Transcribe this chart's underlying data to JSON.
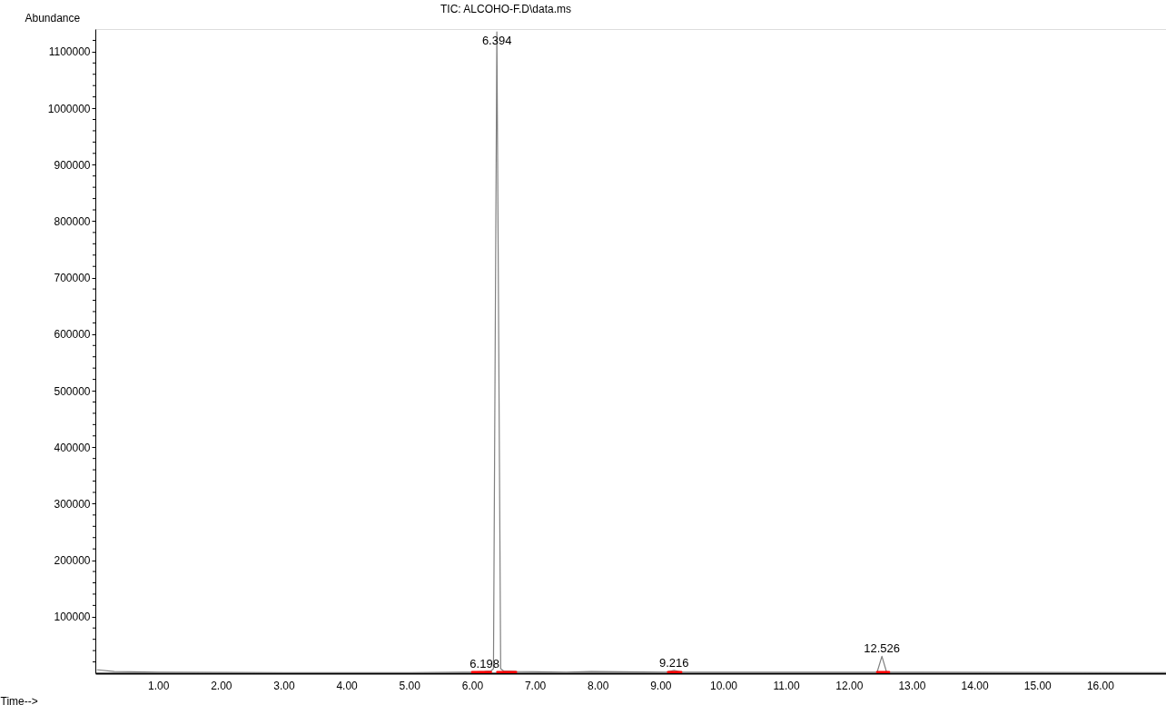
{
  "chart_data": {
    "type": "line",
    "title": "TIC: ALCOHO-F.D\\data.ms",
    "xlabel": "Time-->",
    "ylabel": "Abundance",
    "xlim": [
      0,
      17.05
    ],
    "ylim": [
      0,
      1140000
    ],
    "xticks": [
      {
        "value": 1,
        "label": "1.00"
      },
      {
        "value": 2,
        "label": "2.00"
      },
      {
        "value": 3,
        "label": "3.00"
      },
      {
        "value": 4,
        "label": "4.00"
      },
      {
        "value": 5,
        "label": "5.00"
      },
      {
        "value": 6,
        "label": "6.00"
      },
      {
        "value": 7,
        "label": "7.00"
      },
      {
        "value": 8,
        "label": "8.00"
      },
      {
        "value": 9,
        "label": "9.00"
      },
      {
        "value": 10,
        "label": "10.00"
      },
      {
        "value": 11,
        "label": "11.00"
      },
      {
        "value": 12,
        "label": "12.00"
      },
      {
        "value": 13,
        "label": "13.00"
      },
      {
        "value": 14,
        "label": "14.00"
      },
      {
        "value": 15,
        "label": "15.00"
      },
      {
        "value": 16,
        "label": "16.00"
      }
    ],
    "yticks": [
      {
        "value": 20000,
        "label": null
      },
      {
        "value": 40000,
        "label": null
      },
      {
        "value": 60000,
        "label": null
      },
      {
        "value": 80000,
        "label": null
      },
      100000,
      {
        "value": 120000,
        "label": null
      },
      {
        "value": 140000,
        "label": null
      },
      {
        "value": 160000,
        "label": null
      },
      {
        "value": 180000,
        "label": null
      },
      200000,
      {
        "value": 220000,
        "label": null
      },
      {
        "value": 240000,
        "label": null
      },
      {
        "value": 260000,
        "label": null
      },
      {
        "value": 280000,
        "label": null
      },
      300000,
      {
        "value": 320000,
        "label": null
      },
      {
        "value": 340000,
        "label": null
      },
      {
        "value": 360000,
        "label": null
      },
      {
        "value": 380000,
        "label": null
      },
      400000,
      {
        "value": 420000,
        "label": null
      },
      {
        "value": 440000,
        "label": null
      },
      {
        "value": 460000,
        "label": null
      },
      {
        "value": 480000,
        "label": null
      },
      500000,
      {
        "value": 520000,
        "label": null
      },
      {
        "value": 540000,
        "label": null
      },
      {
        "value": 560000,
        "label": null
      },
      {
        "value": 580000,
        "label": null
      },
      600000,
      {
        "value": 620000,
        "label": null
      },
      {
        "value": 640000,
        "label": null
      },
      {
        "value": 660000,
        "label": null
      },
      {
        "value": 680000,
        "label": null
      },
      700000,
      {
        "value": 720000,
        "label": null
      },
      {
        "value": 740000,
        "label": null
      },
      {
        "value": 760000,
        "label": null
      },
      {
        "value": 780000,
        "label": null
      },
      800000,
      {
        "value": 820000,
        "label": null
      },
      {
        "value": 840000,
        "label": null
      },
      {
        "value": 860000,
        "label": null
      },
      {
        "value": 880000,
        "label": null
      },
      900000,
      {
        "value": 920000,
        "label": null
      },
      {
        "value": 940000,
        "label": null
      },
      {
        "value": 960000,
        "label": null
      },
      {
        "value": 980000,
        "label": null
      },
      1000000,
      {
        "value": 1020000,
        "label": null
      },
      {
        "value": 1040000,
        "label": null
      },
      {
        "value": 1060000,
        "label": null
      },
      {
        "value": 1080000,
        "label": null
      },
      1100000,
      {
        "value": 1120000,
        "label": null
      }
    ],
    "grid": false,
    "legend": false,
    "marker": "none",
    "line_style": "solid",
    "series": [
      {
        "color": "#808080",
        "x": [
          0.03,
          0.3,
          1,
          3,
          5,
          6.0,
          6.198,
          6.3,
          6.34,
          6.394,
          6.455,
          6.5,
          6.7,
          7.5,
          7.9,
          9.1,
          9.216,
          9.33,
          12.45,
          12.526,
          12.6,
          17.05
        ],
        "values": [
          6000,
          3000,
          2000,
          1000,
          1000,
          2000,
          3000,
          4000,
          8000,
          1135000,
          8000,
          4000,
          3000,
          2000,
          3000,
          2000,
          5000,
          2000,
          2000,
          30000,
          2000,
          1000
        ]
      },
      {
        "color": "#ff0000",
        "x": [
          6.0,
          6.3,
          6.31,
          6.4,
          6.7,
          6.71,
          9.12,
          9.33,
          9.34,
          12.45,
          12.64
        ],
        "values": [
          2000,
          2000,
          null,
          2000,
          2000,
          null,
          2000,
          2000,
          null,
          2000,
          2000
        ]
      }
    ],
    "annotations": [
      {
        "text": "6.394",
        "x": 6.394,
        "y": 1135000
      },
      {
        "text": "6.198",
        "x": 6.198,
        "y": 3000
      },
      {
        "text": "9.216",
        "x": 9.216,
        "y": 5000
      },
      {
        "text": "12.526",
        "x": 12.526,
        "y": 30000
      }
    ]
  }
}
